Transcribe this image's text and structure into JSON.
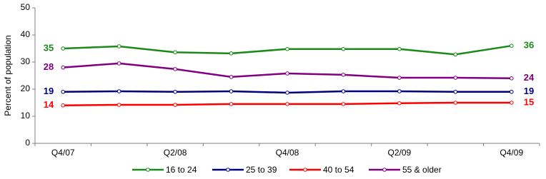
{
  "chart_data": {
    "type": "line",
    "y_label": "Percent of population",
    "categories": [
      "Q4/07",
      null,
      "Q2/08",
      null,
      "Q4/08",
      null,
      "Q2/09",
      null,
      "Q4/09"
    ],
    "ylim": [
      0,
      50
    ],
    "yticks": [
      0,
      10,
      20,
      30,
      40,
      50
    ],
    "grid": false,
    "legend": "bottom",
    "series": [
      {
        "name": "16 to 24",
        "color": "#1a8a1a",
        "values": [
          35,
          35.8,
          33.6,
          33.2,
          34.8,
          34.8,
          34.8,
          32.8,
          36
        ]
      },
      {
        "name": "25 to 39",
        "color": "#000080",
        "values": [
          19,
          19.2,
          19,
          19.2,
          18.7,
          19.2,
          19.2,
          19,
          19
        ]
      },
      {
        "name": "40 to 54",
        "color": "#ff0000",
        "values": [
          14,
          14.2,
          14.2,
          14.5,
          14.5,
          14.5,
          14.8,
          15,
          15
        ]
      },
      {
        "name": "55 & older",
        "color": "#800080",
        "values": [
          28,
          29.5,
          27.4,
          24.5,
          25.8,
          25.3,
          24.2,
          24.2,
          24
        ]
      }
    ]
  }
}
